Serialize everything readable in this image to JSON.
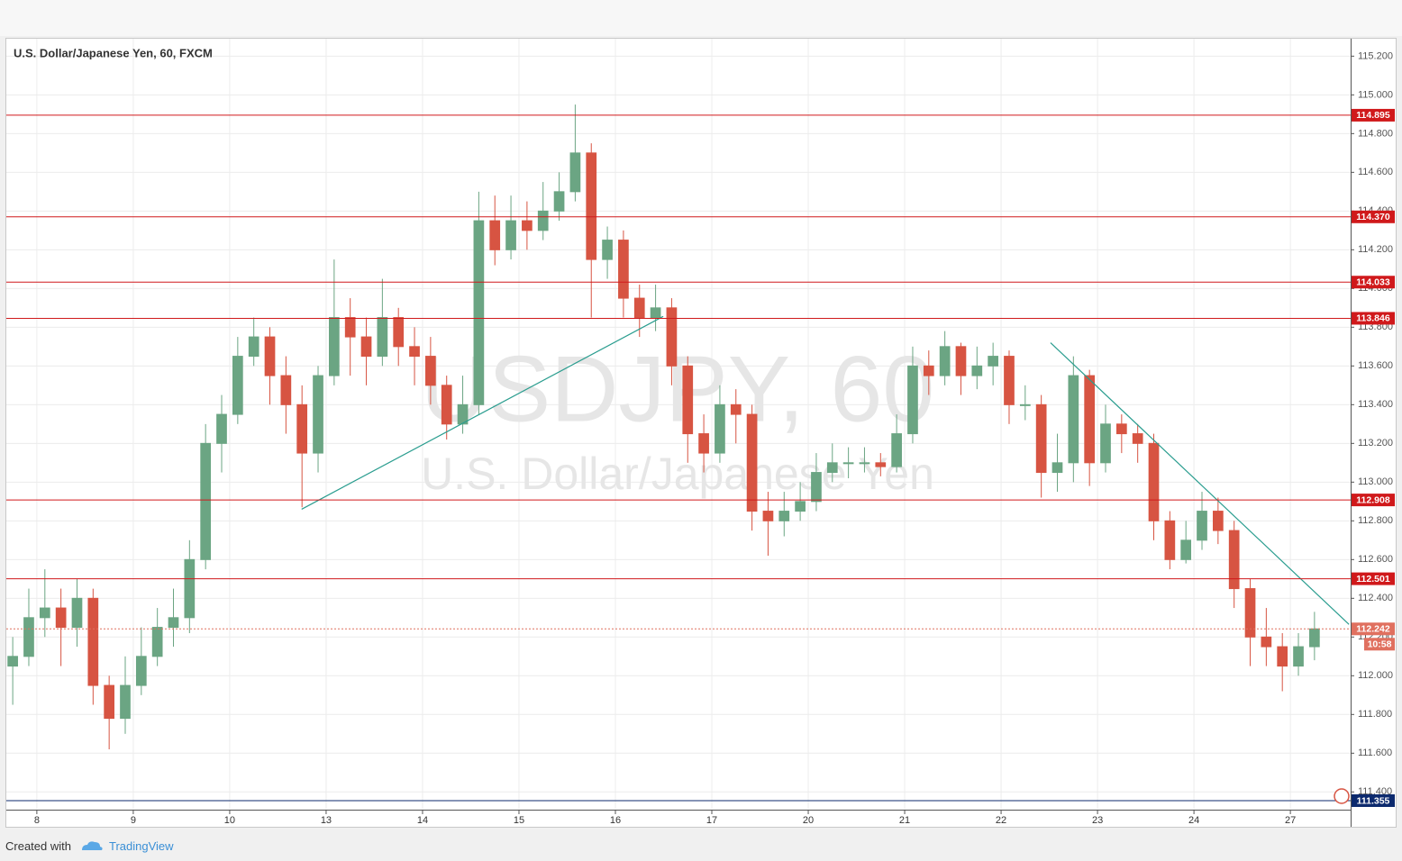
{
  "chart_data": {
    "type": "candlestick",
    "title": "U.S. Dollar/Japanese Yen, 60, FXCM",
    "watermark": {
      "symbol": "USDJPY, 60",
      "name": "U.S. Dollar/Japanese Yen"
    },
    "x": [
      -6,
      -2,
      2,
      6,
      10,
      14,
      18,
      22,
      26,
      30,
      34,
      38,
      42,
      46,
      50,
      54,
      58,
      62,
      66,
      70,
      74,
      78,
      82,
      86,
      90,
      94,
      98,
      102,
      106,
      110,
      114,
      118,
      122,
      126,
      130,
      134,
      138,
      142,
      146,
      150,
      154,
      158,
      162,
      166,
      170,
      174,
      178,
      182,
      186,
      190,
      194,
      198,
      202,
      206,
      210,
      214,
      218,
      222,
      226,
      230,
      234,
      238,
      242,
      246,
      250,
      254,
      258,
      262,
      266,
      270,
      274,
      278,
      282,
      286,
      290,
      294,
      298,
      302,
      306,
      310,
      314,
      318
    ],
    "open": [
      112.05,
      112.1,
      112.3,
      112.35,
      112.25,
      112.4,
      111.95,
      111.78,
      111.95,
      112.1,
      112.25,
      112.3,
      112.6,
      113.2,
      113.35,
      113.65,
      113.75,
      113.55,
      113.4,
      113.15,
      113.55,
      113.85,
      113.75,
      113.65,
      113.85,
      113.7,
      113.65,
      113.5,
      113.3,
      113.4,
      114.35,
      114.2,
      114.35,
      114.3,
      114.4,
      114.5,
      114.7,
      114.15,
      114.25,
      113.95,
      113.85,
      113.9,
      113.6,
      113.25,
      113.15,
      113.4,
      113.35,
      112.85,
      112.8,
      112.85,
      112.9,
      113.05,
      113.1,
      113.1,
      113.1,
      113.08,
      113.25,
      113.6,
      113.55,
      113.7,
      113.55,
      113.6,
      113.65,
      113.4,
      113.4,
      113.05,
      113.1,
      113.55,
      113.1,
      113.3,
      113.25,
      113.2,
      112.8,
      112.6,
      112.7,
      112.85,
      112.75,
      112.45,
      112.2,
      112.15,
      112.05,
      112.15
    ],
    "high": [
      112.2,
      112.45,
      112.55,
      112.45,
      112.5,
      112.45,
      112.0,
      112.1,
      112.25,
      112.35,
      112.45,
      112.7,
      113.3,
      113.45,
      113.75,
      113.85,
      113.8,
      113.65,
      113.5,
      113.6,
      114.15,
      113.95,
      113.85,
      114.05,
      113.9,
      113.8,
      113.75,
      113.55,
      113.55,
      114.5,
      114.48,
      114.48,
      114.45,
      114.55,
      114.6,
      114.95,
      114.75,
      114.32,
      114.3,
      114.02,
      114.02,
      113.95,
      113.65,
      113.35,
      113.5,
      113.48,
      113.4,
      112.95,
      112.95,
      113.0,
      113.15,
      113.2,
      113.18,
      113.18,
      113.15,
      113.35,
      113.7,
      113.68,
      113.78,
      113.72,
      113.7,
      113.72,
      113.68,
      113.5,
      113.45,
      113.25,
      113.65,
      113.58,
      113.4,
      113.35,
      113.3,
      113.25,
      112.85,
      112.8,
      112.95,
      112.92,
      112.8,
      112.5,
      112.35,
      112.22,
      112.22,
      112.33
    ],
    "low": [
      111.85,
      112.05,
      112.2,
      112.05,
      112.15,
      111.85,
      111.62,
      111.7,
      111.9,
      112.05,
      112.15,
      112.22,
      112.55,
      113.05,
      113.3,
      113.6,
      113.4,
      113.25,
      112.87,
      113.05,
      113.5,
      113.55,
      113.5,
      113.6,
      113.6,
      113.5,
      113.4,
      113.22,
      113.25,
      113.35,
      114.12,
      114.15,
      114.2,
      114.25,
      114.35,
      114.45,
      113.85,
      114.05,
      113.85,
      113.75,
      113.78,
      113.5,
      113.1,
      113.05,
      113.1,
      113.2,
      112.75,
      112.62,
      112.72,
      112.8,
      112.85,
      113.0,
      113.02,
      113.05,
      113.03,
      113.05,
      113.2,
      113.45,
      113.5,
      113.45,
      113.48,
      113.5,
      113.3,
      113.32,
      112.92,
      112.95,
      113.0,
      112.98,
      113.05,
      113.15,
      113.1,
      112.7,
      112.55,
      112.58,
      112.65,
      112.68,
      112.35,
      112.05,
      112.05,
      111.92,
      112.0,
      112.08
    ],
    "close": [
      112.1,
      112.3,
      112.35,
      112.25,
      112.4,
      111.95,
      111.78,
      111.95,
      112.1,
      112.25,
      112.3,
      112.6,
      113.2,
      113.35,
      113.65,
      113.75,
      113.55,
      113.4,
      113.15,
      113.55,
      113.85,
      113.75,
      113.65,
      113.85,
      113.7,
      113.65,
      113.5,
      113.3,
      113.4,
      114.35,
      114.2,
      114.35,
      114.3,
      114.4,
      114.5,
      114.7,
      114.15,
      114.25,
      113.95,
      113.85,
      113.9,
      113.6,
      113.25,
      113.15,
      113.4,
      113.35,
      112.85,
      112.8,
      112.85,
      112.9,
      113.05,
      113.1,
      113.1,
      113.1,
      113.08,
      113.25,
      113.6,
      113.55,
      113.7,
      113.55,
      113.6,
      113.65,
      113.4,
      113.4,
      113.05,
      113.1,
      113.55,
      113.1,
      113.3,
      113.25,
      113.2,
      112.8,
      112.6,
      112.7,
      112.85,
      112.75,
      112.45,
      112.2,
      112.15,
      112.05,
      112.15,
      112.242
    ],
    "up_color": "#6ba583",
    "down_color": "#d75442",
    "xlim": [
      -7.6,
      327
    ],
    "xticks": [
      {
        "value": 0,
        "label": "8"
      },
      {
        "value": 24,
        "label": "9"
      },
      {
        "value": 48,
        "label": "10"
      },
      {
        "value": 72,
        "label": "13"
      },
      {
        "value": 96,
        "label": "14"
      },
      {
        "value": 120,
        "label": "15"
      },
      {
        "value": 144,
        "label": "16"
      },
      {
        "value": 168,
        "label": "17"
      },
      {
        "value": 192,
        "label": "20"
      },
      {
        "value": 216,
        "label": "21"
      },
      {
        "value": 240,
        "label": "22"
      },
      {
        "value": 264,
        "label": "23"
      },
      {
        "value": 288,
        "label": "24"
      },
      {
        "value": 312,
        "label": "27"
      }
    ],
    "ylim": [
      111.22,
      115.29
    ],
    "yticks": [
      {
        "value": 111.4,
        "label": "111.400"
      },
      {
        "value": 111.6,
        "label": "111.600"
      },
      {
        "value": 111.8,
        "label": "111.800"
      },
      {
        "value": 112.0,
        "label": "112.000"
      },
      {
        "value": 112.2,
        "label": "112.200"
      },
      {
        "value": 112.4,
        "label": "112.400"
      },
      {
        "value": 112.6,
        "label": "112.600"
      },
      {
        "value": 112.8,
        "label": "112.800"
      },
      {
        "value": 113.0,
        "label": "113.000"
      },
      {
        "value": 113.2,
        "label": "113.200"
      },
      {
        "value": 113.4,
        "label": "113.400"
      },
      {
        "value": 113.6,
        "label": "113.600"
      },
      {
        "value": 113.8,
        "label": "113.800"
      },
      {
        "value": 114.0,
        "label": "114.000"
      },
      {
        "value": 114.2,
        "label": "114.200"
      },
      {
        "value": 114.4,
        "label": "114.400"
      },
      {
        "value": 114.6,
        "label": "114.600"
      },
      {
        "value": 114.8,
        "label": "114.800"
      },
      {
        "value": 115.0,
        "label": "115.000"
      },
      {
        "value": 115.2,
        "label": "115.200"
      }
    ],
    "grid": true,
    "levels": [
      {
        "value": 114.895,
        "color": "#d0191b"
      },
      {
        "value": {
          "value": 114.37,
          "label": "114.370"
        },
        "color": "#d0191b"
      },
      {
        "value": 114.033,
        "color": "#d0191b"
      },
      {
        "value": 113.846,
        "color": "#d0191b"
      },
      {
        "value": 112.908,
        "color": "#d0191b"
      },
      {
        "value": 112.501,
        "color": "#d0191b"
      },
      {
        "value": 111.355,
        "color": "#0c2a6e"
      }
    ],
    "current_price": {
      "value": 112.242,
      "countdown": "10:58",
      "color": "#e0705f"
    },
    "trendlines": [
      {
        "x": [
          65.9,
          155.9
        ],
        "y": [
          112.86,
          113.856
        ],
        "color": "#2a9d8f"
      },
      {
        "x": [
          252.3,
          326.6
        ],
        "y": [
          113.72,
          112.265
        ],
        "color": "#2a9d8f"
      }
    ]
  },
  "footer": {
    "created": "Created with",
    "brand": "TradingView"
  }
}
